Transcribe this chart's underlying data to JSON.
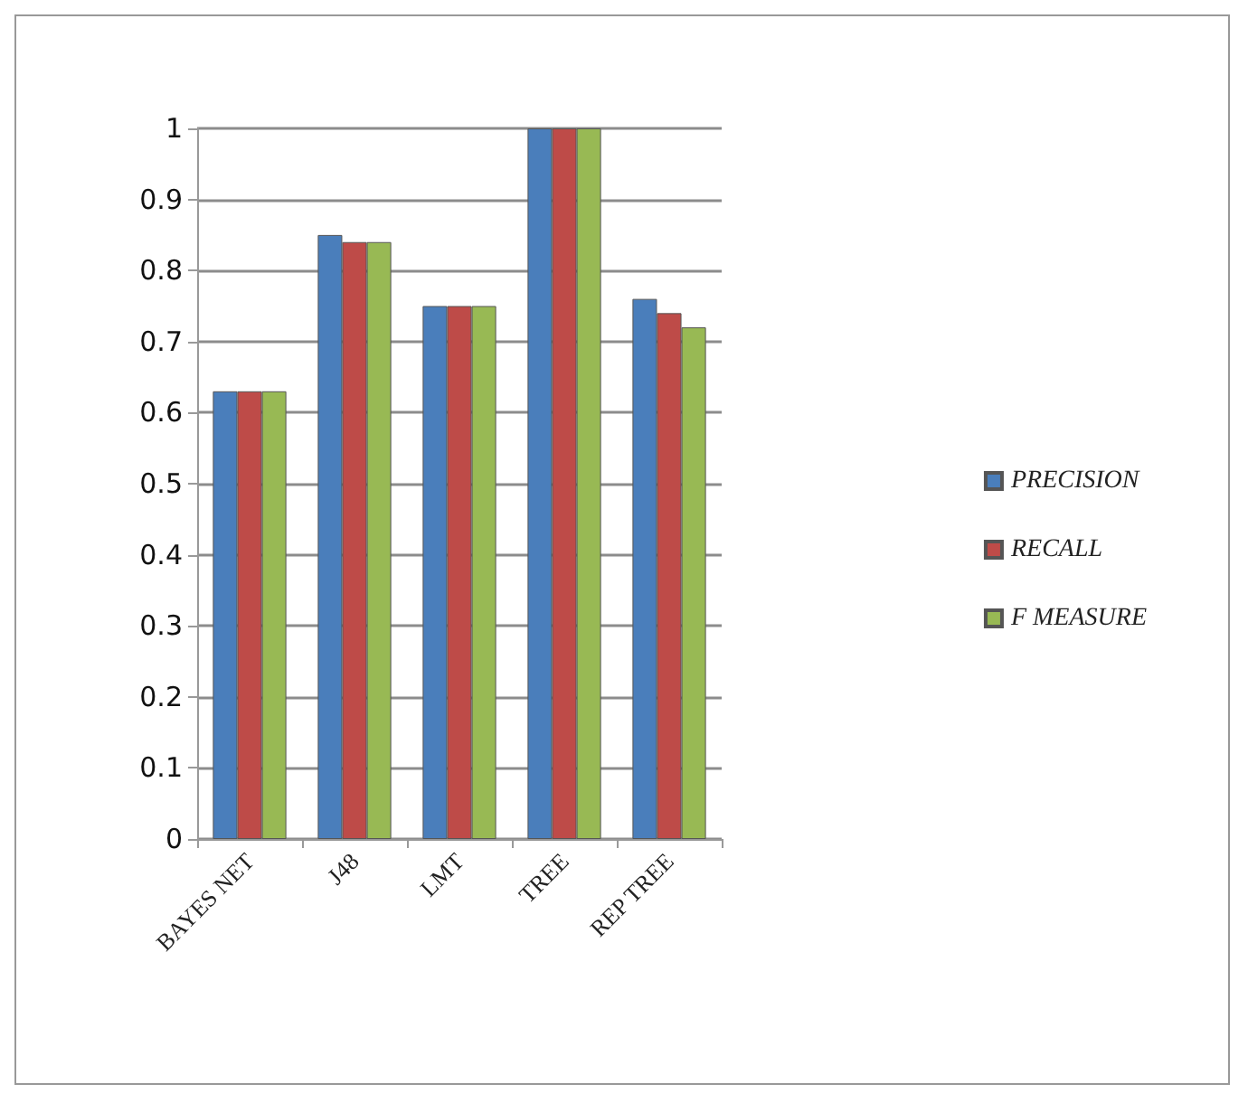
{
  "chart_data": {
    "type": "bar",
    "categories": [
      "BAYES NET",
      "J48",
      "LMT",
      "TREE",
      "REP TREE"
    ],
    "series": [
      {
        "name": "PRECISION",
        "color": "#4a7ebb",
        "values": [
          0.63,
          0.85,
          0.75,
          1,
          0.76
        ]
      },
      {
        "name": "RECALL",
        "color": "#be4b48",
        "values": [
          0.63,
          0.84,
          0.75,
          1,
          0.74
        ]
      },
      {
        "name": "F MEASURE",
        "color": "#98b954",
        "values": [
          0.63,
          0.84,
          0.75,
          1,
          0.72
        ]
      }
    ],
    "ylim": [
      0,
      1
    ],
    "yticks": [
      0,
      0.1,
      0.2,
      0.3,
      0.4,
      0.5,
      0.6,
      0.7,
      0.8,
      0.9,
      1
    ],
    "grid": "y",
    "legend": "right"
  }
}
